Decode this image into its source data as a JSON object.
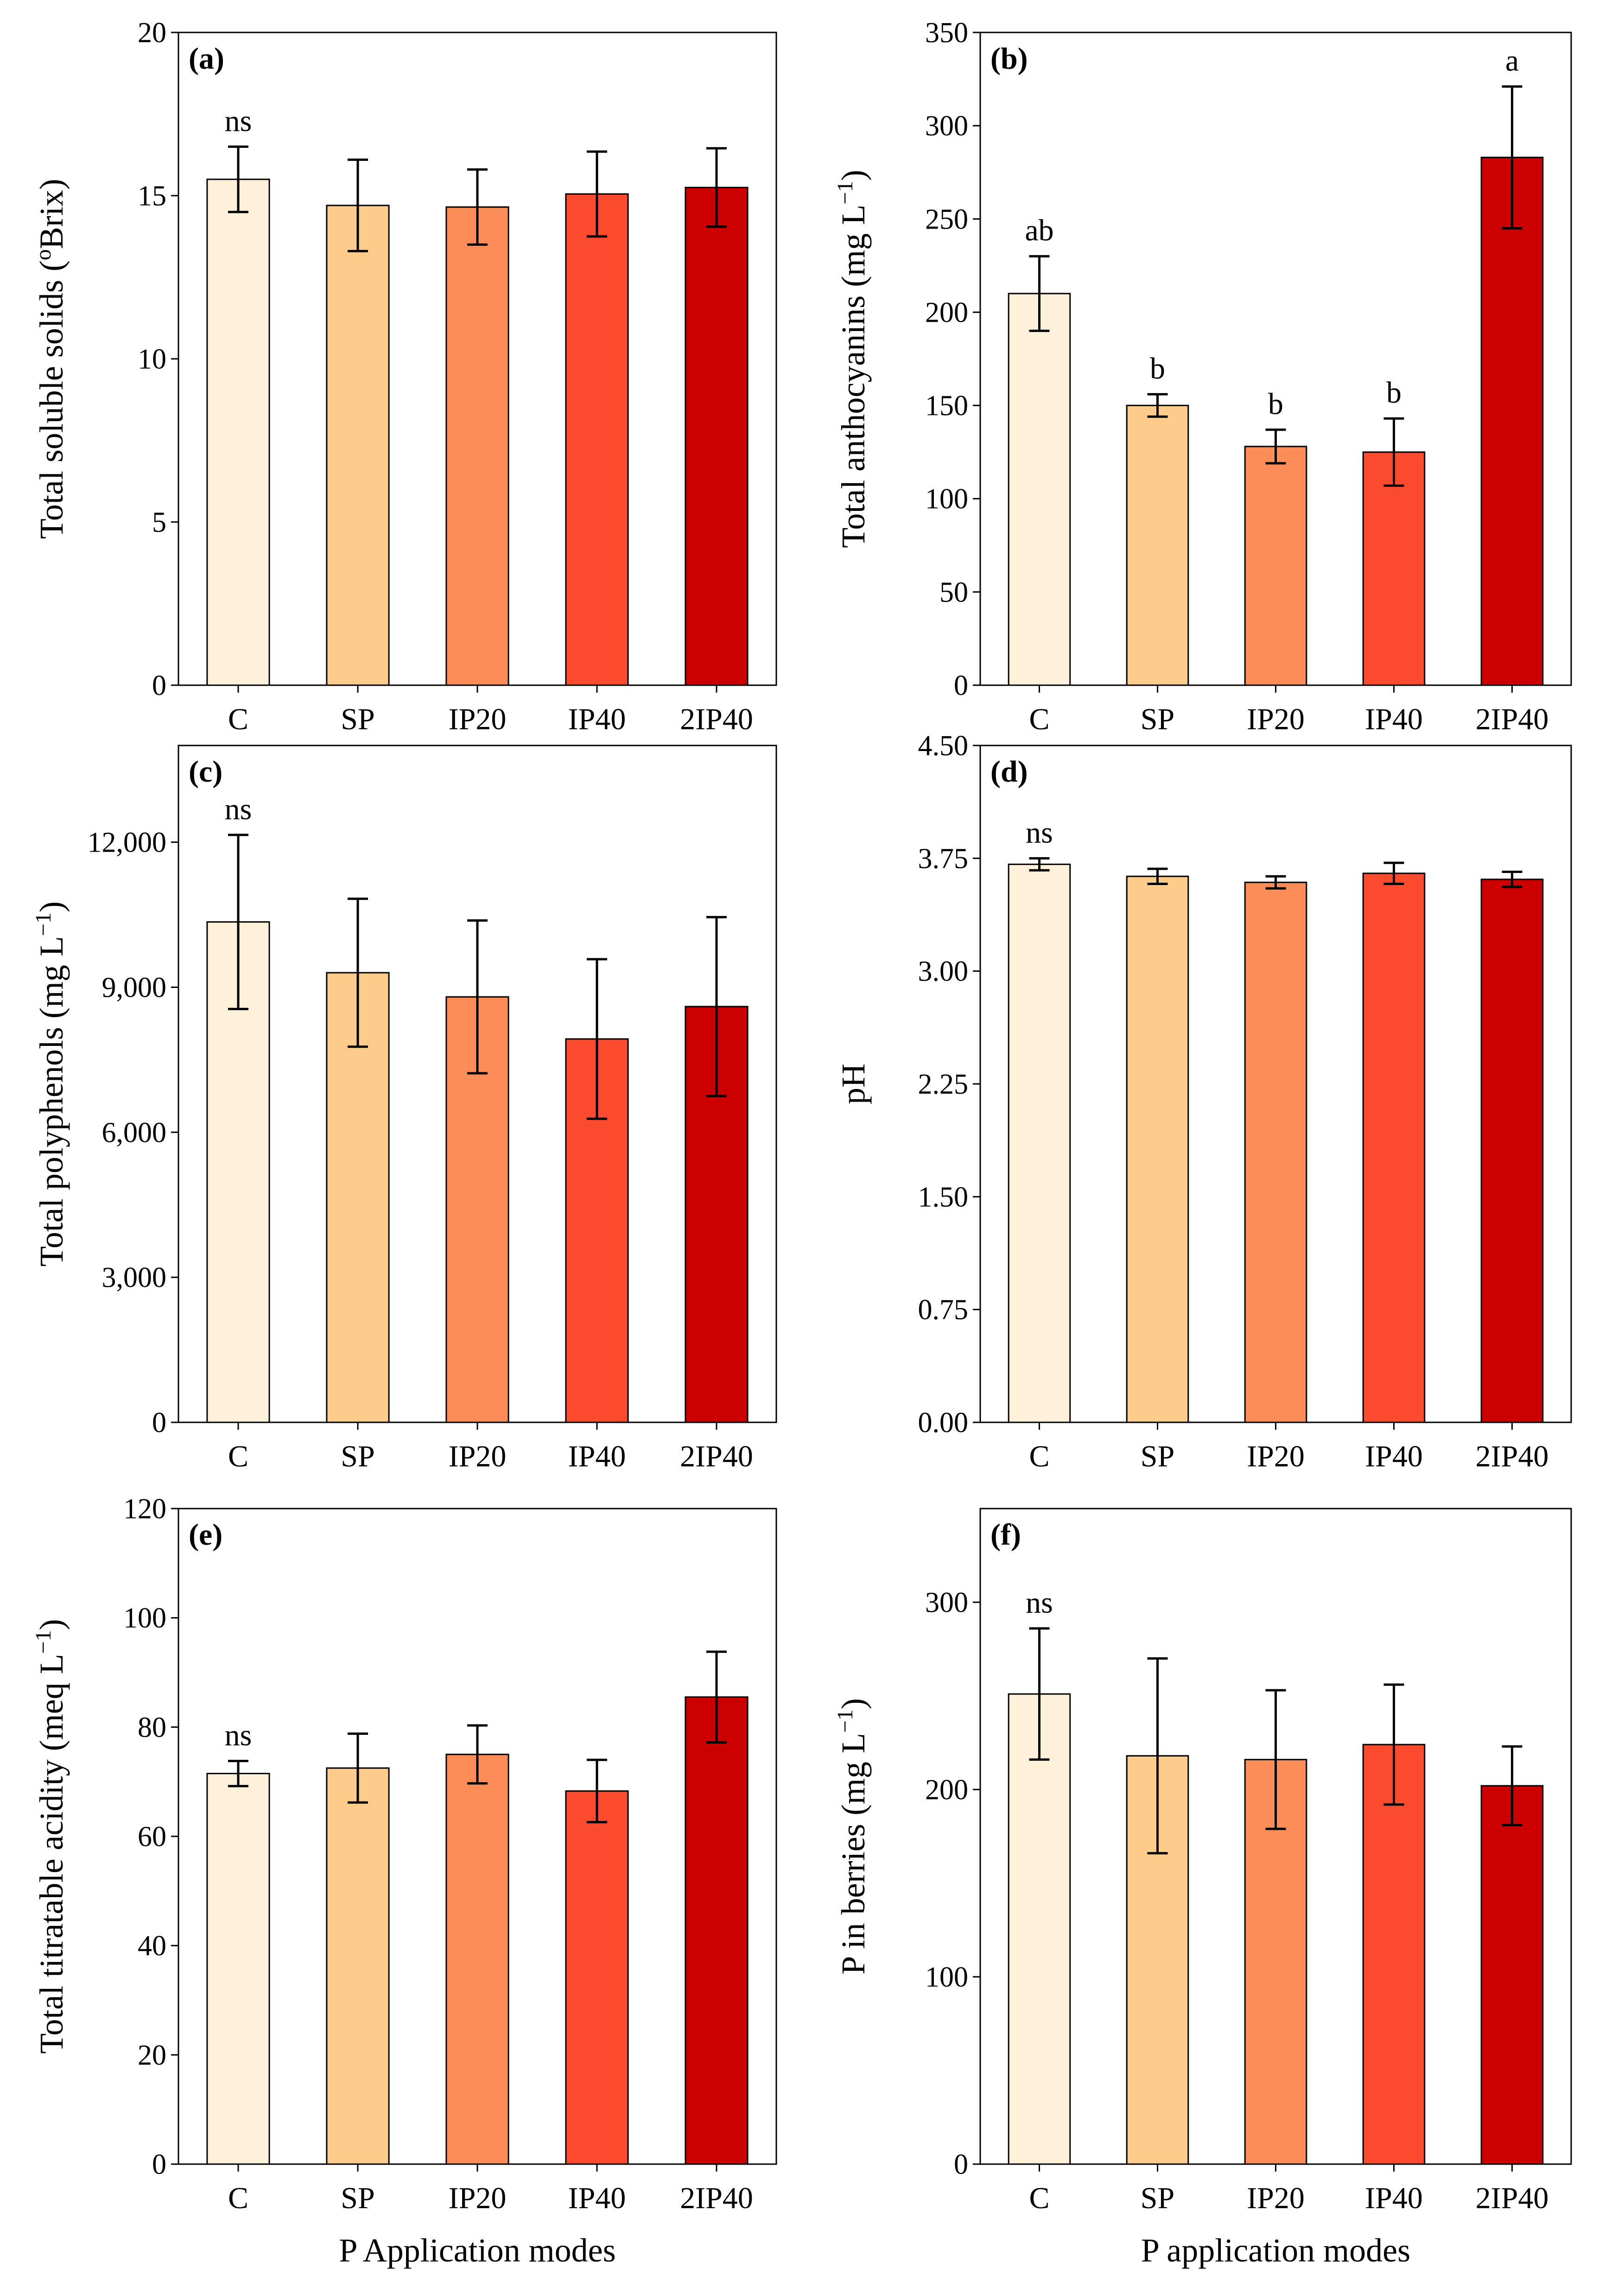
{
  "figure": {
    "categories": [
      "C",
      "SP",
      "IP20",
      "IP40",
      "2IP40"
    ],
    "colors": [
      "#fef0d9",
      "#fdcc8a",
      "#fc8d59",
      "#fc4a2f",
      "#cc0000"
    ]
  },
  "chart_data": [
    {
      "panel": "(a)",
      "type": "bar",
      "ylabel_main": "Total soluble solids (",
      "ylabel_sup": "o",
      "ylabel_tail": "Brix)",
      "xlabel": "",
      "ylim": [
        0,
        20
      ],
      "yticks": [
        "0",
        "5",
        "10",
        "15",
        "20"
      ],
      "categories": [
        "C",
        "SP",
        "IP20",
        "IP40",
        "2IP40"
      ],
      "values": [
        15.5,
        14.7,
        14.65,
        15.05,
        15.25
      ],
      "errors": [
        1.0,
        1.4,
        1.15,
        1.3,
        1.2
      ],
      "significance": [
        "ns",
        "",
        "",
        "",
        ""
      ]
    },
    {
      "panel": "(b)",
      "type": "bar",
      "ylabel_main": "Total anthocyanins (mg L",
      "ylabel_sup": "−1",
      "ylabel_tail": ")",
      "xlabel": "",
      "ylim": [
        0,
        350
      ],
      "yticks": [
        "0",
        "50",
        "100",
        "150",
        "200",
        "250",
        "300",
        "350"
      ],
      "categories": [
        "C",
        "SP",
        "IP20",
        "IP40",
        "2IP40"
      ],
      "values": [
        210,
        150,
        128,
        125,
        283
      ],
      "errors": [
        20,
        6,
        9,
        18,
        38
      ],
      "significance": [
        "ab",
        "b",
        "b",
        "b",
        "a"
      ]
    },
    {
      "panel": "(c)",
      "type": "bar",
      "ylabel_main": "Total polyphenols (mg L",
      "ylabel_sup": "−1",
      "ylabel_tail": ")",
      "xlabel": "",
      "ylim": [
        0,
        14000
      ],
      "yticks": [
        "0",
        "3,000",
        "6,000",
        "9,000",
        "12,000"
      ],
      "categories": [
        "C",
        "SP",
        "IP20",
        "IP40",
        "2IP40"
      ],
      "values": [
        10350,
        9300,
        8800,
        7930,
        8600
      ],
      "errors": [
        1800,
        1530,
        1580,
        1650,
        1850
      ],
      "significance": [
        "ns",
        "",
        "",
        "",
        ""
      ]
    },
    {
      "panel": "(d)",
      "type": "bar",
      "ylabel_main": "pH",
      "ylabel_sup": "",
      "ylabel_tail": "",
      "xlabel": "",
      "ylim": [
        0,
        4.5
      ],
      "yticks": [
        "0.00",
        "0.75",
        "1.50",
        "2.25",
        "3.00",
        "3.75",
        "4.50"
      ],
      "categories": [
        "C",
        "SP",
        "IP20",
        "IP40",
        "2IP40"
      ],
      "values": [
        3.71,
        3.63,
        3.59,
        3.65,
        3.61
      ],
      "errors": [
        0.04,
        0.05,
        0.04,
        0.07,
        0.05
      ],
      "significance": [
        "ns",
        "",
        "",
        "",
        ""
      ]
    },
    {
      "panel": "(e)",
      "type": "bar",
      "ylabel_main": "Total titratable acidity (meq L",
      "ylabel_sup": "−1",
      "ylabel_tail": ")",
      "xlabel": "P Application modes",
      "ylim": [
        0,
        120
      ],
      "yticks": [
        "0",
        "20",
        "40",
        "60",
        "80",
        "100",
        "120"
      ],
      "categories": [
        "C",
        "SP",
        "IP20",
        "IP40",
        "2IP40"
      ],
      "values": [
        71.5,
        72.5,
        75,
        68.3,
        85.5
      ],
      "errors": [
        2.3,
        6.3,
        5.3,
        5.7,
        8.3
      ],
      "significance": [
        "ns",
        "",
        "",
        "",
        ""
      ]
    },
    {
      "panel": "(f)",
      "type": "bar",
      "ylabel_main": "P in berries (mg L",
      "ylabel_sup": "−1",
      "ylabel_tail": ")",
      "xlabel": "P application modes",
      "ylim": [
        0,
        350
      ],
      "yticks": [
        "0",
        "100",
        "200",
        "300"
      ],
      "categories": [
        "C",
        "SP",
        "IP20",
        "IP40",
        "2IP40"
      ],
      "values": [
        251,
        218,
        216,
        224,
        202
      ],
      "errors": [
        35,
        52,
        37,
        32,
        21
      ],
      "significance": [
        "ns",
        "",
        "",
        "",
        ""
      ]
    }
  ]
}
